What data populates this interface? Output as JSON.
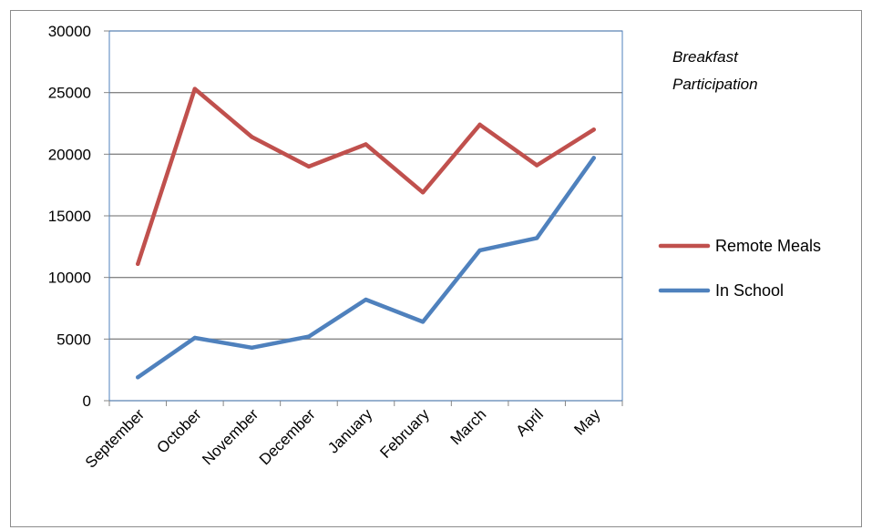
{
  "chart_data": {
    "type": "line",
    "title": "",
    "xlabel": "",
    "ylabel": "",
    "ylim": [
      0,
      30000
    ],
    "yticks": [
      0,
      5000,
      10000,
      15000,
      20000,
      25000,
      30000
    ],
    "ytick_labels": [
      "0",
      "5000",
      "10000",
      "15000",
      "20000",
      "25000",
      "30000"
    ],
    "grid": true,
    "legend_position": "right",
    "annotation": [
      "Breakfast",
      "Participation"
    ],
    "categories": [
      "September",
      "October",
      "November",
      "December",
      "January",
      "February",
      "March",
      "April",
      "May"
    ],
    "series": [
      {
        "name": "Remote Meals",
        "color": "#c0504d",
        "values": [
          11100,
          25300,
          21400,
          19000,
          20800,
          16900,
          22400,
          19100,
          22000
        ]
      },
      {
        "name": "In School",
        "color": "#4f81bd",
        "values": [
          1900,
          5100,
          4300,
          5200,
          8200,
          6400,
          12200,
          13200,
          19700
        ]
      }
    ]
  }
}
